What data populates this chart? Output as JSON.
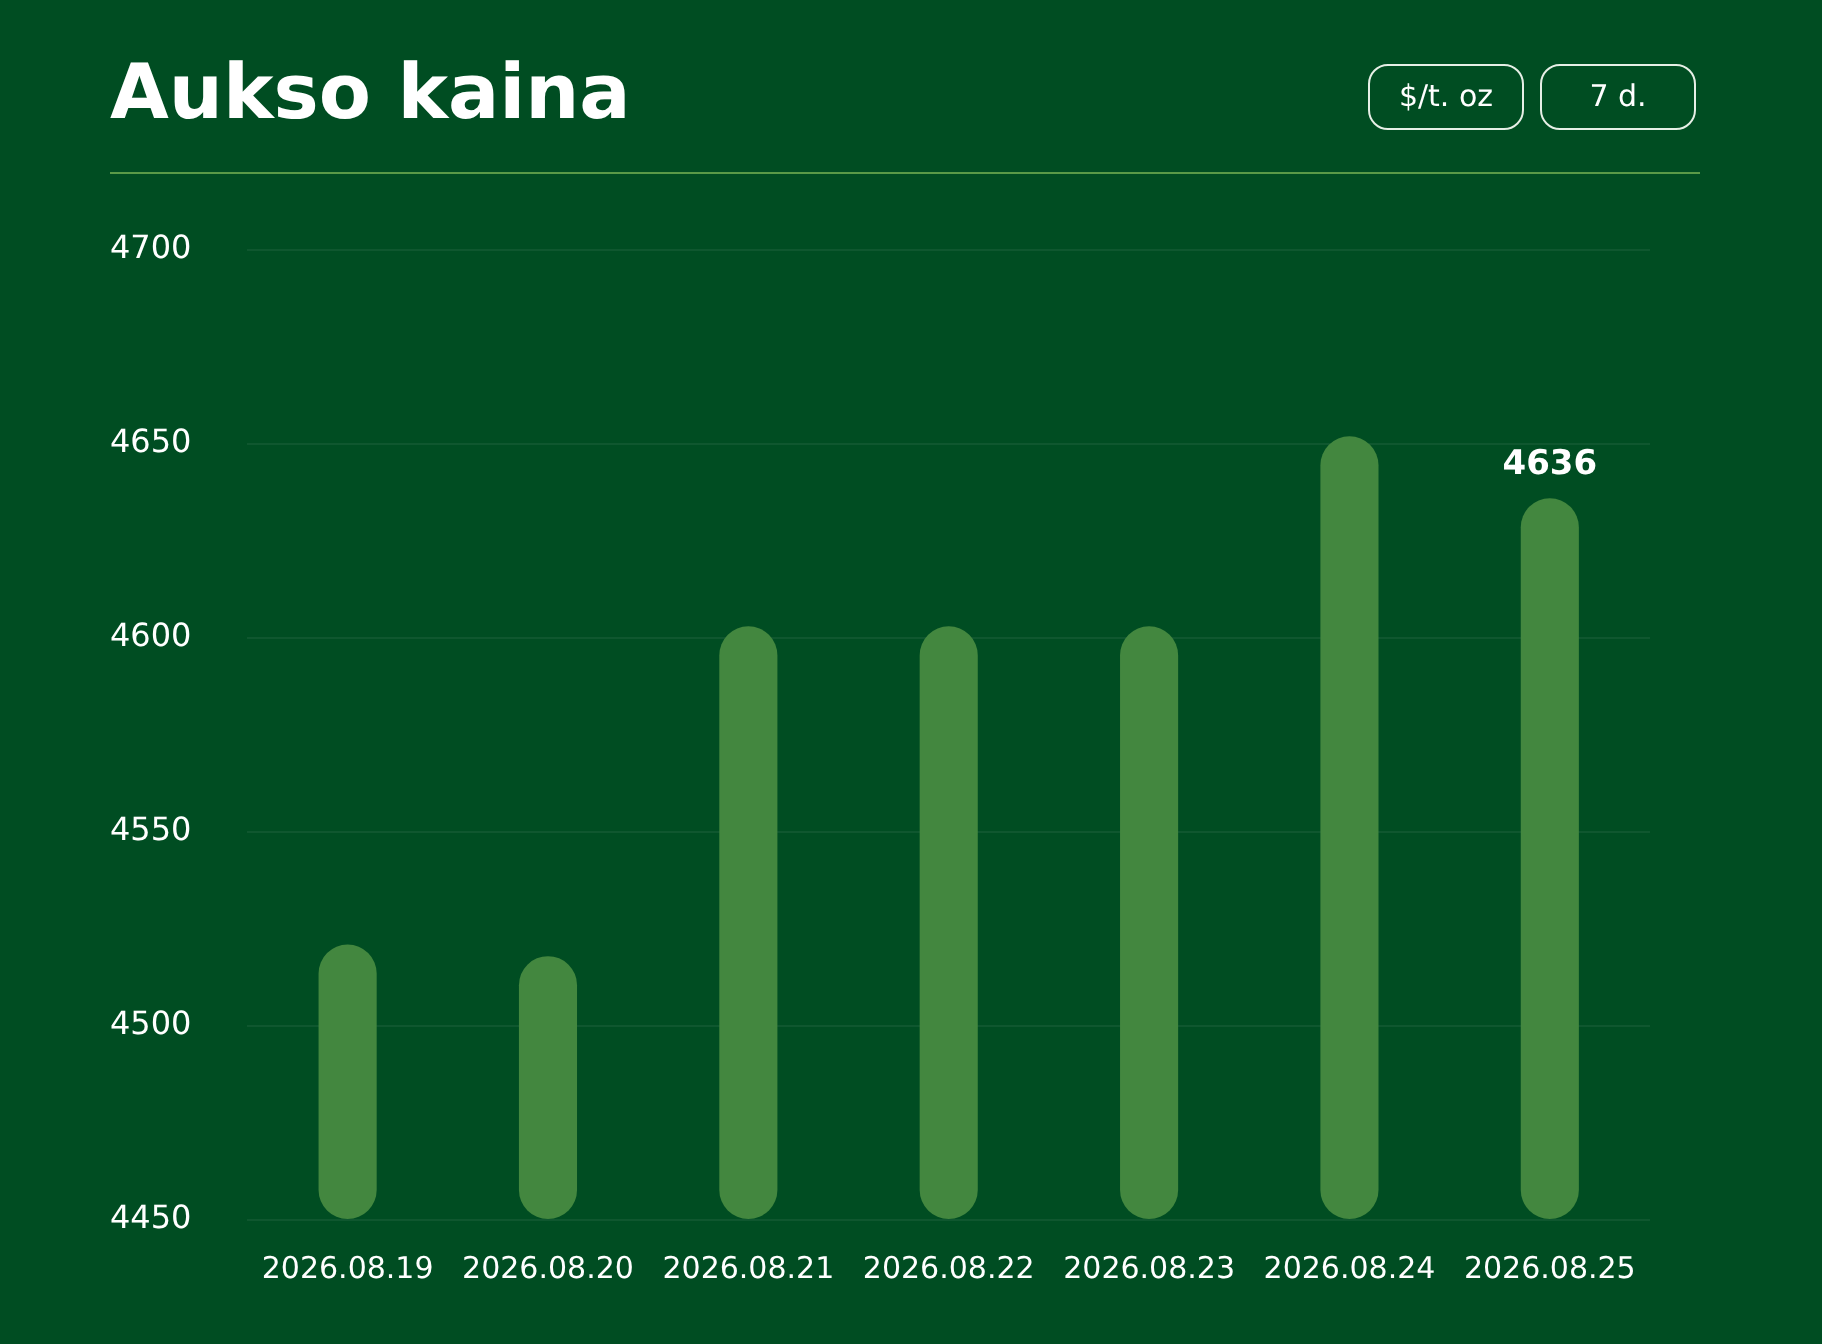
{
  "chart_data": {
    "type": "bar",
    "title": "Aukso kaina",
    "annotations": [
      "$/t. oz",
      "7 d."
    ],
    "categories": [
      "2026.08.19",
      "2026.08.20",
      "2026.08.21",
      "2026.08.22",
      "2026.08.23",
      "2026.08.24",
      "2026.08.25"
    ],
    "values": [
      4521,
      4518,
      4603,
      4603,
      4603,
      4652,
      4636
    ],
    "value_labels": [
      null,
      null,
      null,
      null,
      null,
      null,
      "4636"
    ],
    "color": "#43873f",
    "ylim": [
      4450,
      4700
    ],
    "yticks": [
      4450,
      4500,
      4550,
      4600,
      4650,
      4700
    ],
    "grid": "y",
    "legend": false
  }
}
